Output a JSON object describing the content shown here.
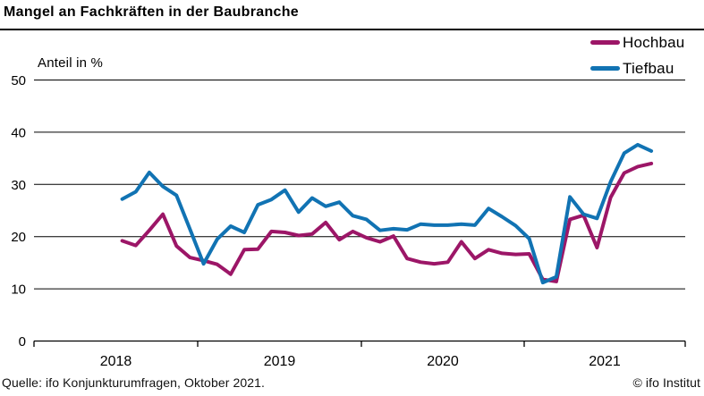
{
  "title": "Mangel an Fachkräften in der Baubranche",
  "axis_unit_label": "Anteil in %",
  "source": "Quelle: ifo Konjunkturumfragen, Oktober 2021.",
  "copyright": "© ifo Institut",
  "colors": {
    "hochbau": "#9c1667",
    "tiefbau": "#1173b3",
    "axis": "#000000"
  },
  "chart_data": {
    "type": "line",
    "title": "Mangel an Fachkräften in der Baubranche",
    "ylabel": "Anteil in %",
    "ylim": [
      0,
      50
    ],
    "yticks": [
      0,
      10,
      20,
      30,
      40,
      50
    ],
    "grid": "horizontal",
    "legend_position": "top-right",
    "x_year_labels": [
      "2018",
      "2019",
      "2020",
      "2021"
    ],
    "months": [
      "2018-07",
      "2018-08",
      "2018-09",
      "2018-10",
      "2018-11",
      "2018-12",
      "2019-01",
      "2019-02",
      "2019-03",
      "2019-04",
      "2019-05",
      "2019-06",
      "2019-07",
      "2019-08",
      "2019-09",
      "2019-10",
      "2019-11",
      "2019-12",
      "2020-01",
      "2020-02",
      "2020-03",
      "2020-04",
      "2020-05",
      "2020-06",
      "2020-07",
      "2020-08",
      "2020-09",
      "2020-10",
      "2020-11",
      "2020-12",
      "2021-01",
      "2021-02",
      "2021-03",
      "2021-04",
      "2021-05",
      "2021-06",
      "2021-07",
      "2021-08",
      "2021-09",
      "2021-10"
    ],
    "series": [
      {
        "name": "Hochbau",
        "color": "#9c1667",
        "values": [
          19.2,
          18.3,
          21.2,
          24.3,
          18.2,
          16.0,
          15.4,
          14.7,
          12.8,
          17.5,
          17.6,
          21.0,
          20.8,
          20.2,
          20.5,
          22.7,
          19.4,
          21.0,
          19.8,
          19.0,
          20.1,
          15.8,
          15.1,
          14.8,
          15.1,
          19.0,
          15.8,
          17.5,
          16.8,
          16.6,
          16.7,
          11.8,
          11.4,
          23.3,
          24.1,
          17.9,
          27.5,
          32.2,
          33.4,
          34.0
        ]
      },
      {
        "name": "Tiefbau",
        "color": "#1173b3",
        "values": [
          27.2,
          28.6,
          32.3,
          29.6,
          27.9,
          21.4,
          14.8,
          19.5,
          22.0,
          20.8,
          26.1,
          27.1,
          28.9,
          24.7,
          27.4,
          25.8,
          26.6,
          24.0,
          23.3,
          21.2,
          21.5,
          21.3,
          22.4,
          22.2,
          22.2,
          22.4,
          22.2,
          25.4,
          23.8,
          22.1,
          19.6,
          11.2,
          12.3,
          27.6,
          24.3,
          23.5,
          30.5,
          36.0,
          37.6,
          36.4
        ]
      }
    ]
  }
}
